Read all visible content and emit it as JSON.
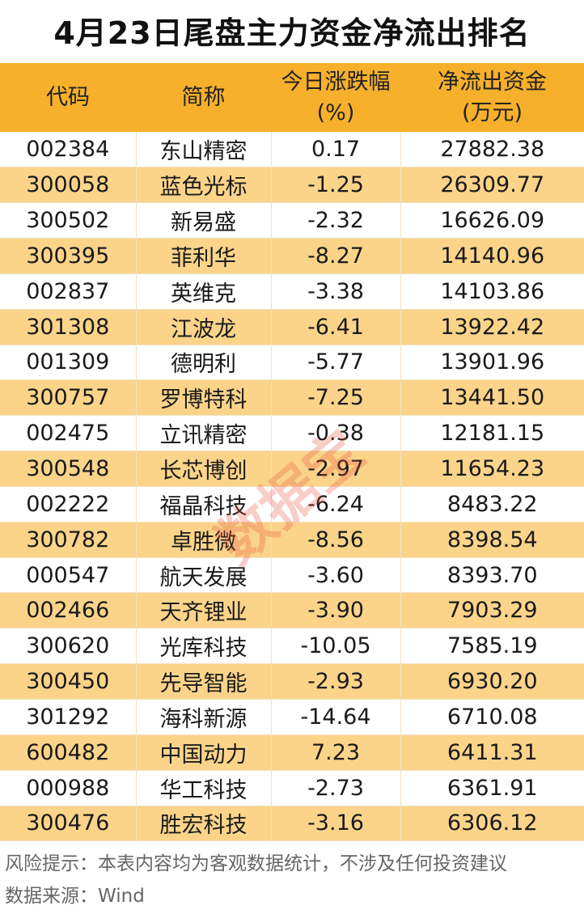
{
  "title": "4月23日尾盘主力资金净流出排名",
  "headers": [
    {
      "line1": "代码",
      "line2": ""
    },
    {
      "line1": "简称",
      "line2": ""
    },
    {
      "line1": "今日涨跌幅",
      "line2": "(%)"
    },
    {
      "line1": "净流出资金",
      "line2": "(万元)"
    }
  ],
  "rows": [
    [
      "002384",
      "东山精密",
      "0.17",
      "27882.38"
    ],
    [
      "300058",
      "蓝色光标",
      "-1.25",
      "26309.77"
    ],
    [
      "300502",
      "新易盛",
      "-2.32",
      "16626.09"
    ],
    [
      "300395",
      "菲利华",
      "-8.27",
      "14140.96"
    ],
    [
      "002837",
      "英维克",
      "-3.38",
      "14103.86"
    ],
    [
      "301308",
      "江波龙",
      "-6.41",
      "13922.42"
    ],
    [
      "001309",
      "德明利",
      "-5.77",
      "13901.96"
    ],
    [
      "300757",
      "罗博特科",
      "-7.25",
      "13441.50"
    ],
    [
      "002475",
      "立讯精密",
      "-0.38",
      "12181.15"
    ],
    [
      "300548",
      "长芯博创",
      "-2.97",
      "11654.23"
    ],
    [
      "002222",
      "福晶科技",
      "-6.24",
      "8483.22"
    ],
    [
      "300782",
      "卓胜微",
      "-8.56",
      "8398.54"
    ],
    [
      "000547",
      "航天发展",
      "-3.60",
      "8393.70"
    ],
    [
      "002466",
      "天齐锂业",
      "-3.90",
      "7903.29"
    ],
    [
      "300620",
      "光库科技",
      "-10.05",
      "7585.19"
    ],
    [
      "300450",
      "先导智能",
      "-2.93",
      "6930.20"
    ],
    [
      "301292",
      "海科新源",
      "-14.64",
      "6710.08"
    ],
    [
      "600482",
      "中国动力",
      "7.23",
      "6411.31"
    ],
    [
      "000988",
      "华工科技",
      "-2.73",
      "6361.91"
    ],
    [
      "300476",
      "胜宏科技",
      "-3.16",
      "6306.12"
    ]
  ],
  "footer": {
    "risk_note": "风险提示：本表内容均为客观数据统计，不涉及任何投资建议",
    "source": "数据来源：Wind"
  },
  "watermark": "数据宝",
  "colors": {
    "header_bg": "#f7b02b",
    "alt_row_bg": "#fbd48a",
    "watermark": "#e6503c"
  }
}
